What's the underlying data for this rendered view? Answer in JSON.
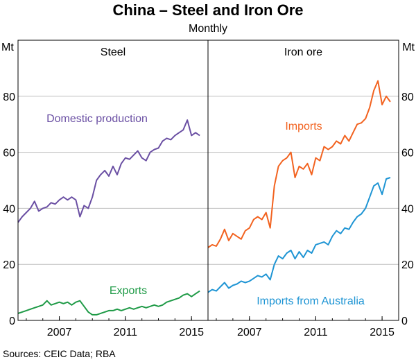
{
  "title": "China – Steel and Iron Ore",
  "subtitle": "Monthly",
  "unit_left": "Mt",
  "unit_right": "Mt",
  "source": "Sources:   CEIC Data; RBA",
  "chart_data": [
    {
      "type": "line",
      "panel": "Steel",
      "ylabel": "Mt",
      "ylim": [
        0,
        100
      ],
      "yticks": [
        "0",
        "20",
        "40",
        "60",
        "80"
      ],
      "xlim": [
        2004.5,
        2016.0
      ],
      "xticks": [
        "2007",
        "2011",
        "2015"
      ],
      "series": [
        {
          "name": "Domestic production",
          "color": "#6a4fa3",
          "x": [
            2004.5,
            2004.75,
            2005.0,
            2005.25,
            2005.5,
            2005.75,
            2006.0,
            2006.25,
            2006.5,
            2006.75,
            2007.0,
            2007.25,
            2007.5,
            2007.75,
            2008.0,
            2008.25,
            2008.5,
            2008.75,
            2009.0,
            2009.25,
            2009.5,
            2009.75,
            2010.0,
            2010.25,
            2010.5,
            2010.75,
            2011.0,
            2011.25,
            2011.5,
            2011.75,
            2012.0,
            2012.25,
            2012.5,
            2012.75,
            2013.0,
            2013.25,
            2013.5,
            2013.75,
            2014.0,
            2014.25,
            2014.5,
            2014.75,
            2015.0,
            2015.25,
            2015.5
          ],
          "values": [
            35,
            37,
            38.5,
            40,
            42.5,
            39,
            40,
            40.5,
            42,
            41.5,
            43,
            44,
            43,
            44,
            43,
            37,
            41,
            40,
            44,
            50,
            52,
            53.5,
            51.5,
            55,
            52,
            56,
            58,
            57.5,
            59,
            60.5,
            58,
            57,
            60,
            61,
            61.5,
            64,
            65,
            64.5,
            66,
            67,
            68,
            71.5,
            66,
            67,
            66
          ]
        },
        {
          "name": "Exports",
          "color": "#1e9a46",
          "x": [
            2004.5,
            2004.75,
            2005.0,
            2005.25,
            2005.5,
            2005.75,
            2006.0,
            2006.25,
            2006.5,
            2006.75,
            2007.0,
            2007.25,
            2007.5,
            2007.75,
            2008.0,
            2008.25,
            2008.5,
            2008.75,
            2009.0,
            2009.25,
            2009.5,
            2009.75,
            2010.0,
            2010.25,
            2010.5,
            2010.75,
            2011.0,
            2011.25,
            2011.5,
            2011.75,
            2012.0,
            2012.25,
            2012.5,
            2012.75,
            2013.0,
            2013.25,
            2013.5,
            2013.75,
            2014.0,
            2014.25,
            2014.5,
            2014.75,
            2015.0,
            2015.25,
            2015.5
          ],
          "values": [
            2.5,
            3,
            3.5,
            4,
            4.5,
            5,
            5.5,
            7,
            5.5,
            6,
            6.5,
            6,
            6.5,
            5.5,
            6.5,
            7,
            5,
            3,
            2,
            2,
            2.5,
            3,
            3.5,
            3.5,
            4,
            3.5,
            4,
            4.5,
            4,
            4.5,
            5,
            4.5,
            5,
            5.5,
            5,
            5.5,
            6.5,
            7,
            7.5,
            8,
            9,
            9.5,
            8.5,
            9.5,
            10.5
          ]
        }
      ]
    },
    {
      "type": "line",
      "panel": "Iron ore",
      "ylabel": "Mt",
      "ylim": [
        0,
        100
      ],
      "yticks": [
        "0",
        "20",
        "40",
        "60",
        "80"
      ],
      "xlim": [
        2004.5,
        2016.0
      ],
      "xticks": [
        "2007",
        "2011",
        "2015"
      ],
      "series": [
        {
          "name": "Imports",
          "color": "#f2621f",
          "x": [
            2004.5,
            2004.75,
            2005.0,
            2005.25,
            2005.5,
            2005.75,
            2006.0,
            2006.25,
            2006.5,
            2006.75,
            2007.0,
            2007.25,
            2007.5,
            2007.75,
            2008.0,
            2008.25,
            2008.5,
            2008.75,
            2009.0,
            2009.25,
            2009.5,
            2009.75,
            2010.0,
            2010.25,
            2010.5,
            2010.75,
            2011.0,
            2011.25,
            2011.5,
            2011.75,
            2012.0,
            2012.25,
            2012.5,
            2012.75,
            2013.0,
            2013.25,
            2013.5,
            2013.75,
            2014.0,
            2014.25,
            2014.5,
            2014.75,
            2015.0,
            2015.25,
            2015.5
          ],
          "values": [
            26,
            27,
            26.5,
            29,
            32.5,
            28.5,
            31,
            30,
            29,
            32,
            33,
            36,
            37,
            36,
            38.5,
            33,
            48,
            55,
            57,
            58,
            60,
            51,
            55,
            54,
            56,
            52,
            58,
            57,
            62,
            61,
            62,
            64,
            63,
            66,
            64,
            67,
            70,
            70.5,
            72,
            76,
            82,
            85.5,
            77,
            80,
            78
          ]
        },
        {
          "name": "Imports from Australia",
          "color": "#1f95d4",
          "x": [
            2004.5,
            2004.75,
            2005.0,
            2005.25,
            2005.5,
            2005.75,
            2006.0,
            2006.25,
            2006.5,
            2006.75,
            2007.0,
            2007.25,
            2007.5,
            2007.75,
            2008.0,
            2008.25,
            2008.5,
            2008.75,
            2009.0,
            2009.25,
            2009.5,
            2009.75,
            2010.0,
            2010.25,
            2010.5,
            2010.75,
            2011.0,
            2011.25,
            2011.5,
            2011.75,
            2012.0,
            2012.25,
            2012.5,
            2012.75,
            2013.0,
            2013.25,
            2013.5,
            2013.75,
            2014.0,
            2014.25,
            2014.5,
            2014.75,
            2015.0,
            2015.25,
            2015.5
          ],
          "values": [
            10,
            11,
            10.5,
            12,
            13.5,
            11.5,
            12.5,
            13,
            14,
            13.5,
            14,
            15,
            16,
            15.5,
            16.5,
            14.5,
            20,
            23,
            22,
            24,
            25,
            22,
            24.5,
            22.5,
            25,
            24,
            27,
            27.5,
            28,
            27,
            30,
            32,
            31,
            33,
            32.5,
            35,
            37,
            38,
            40,
            44,
            48,
            49,
            45,
            50.5,
            51
          ]
        }
      ]
    }
  ]
}
